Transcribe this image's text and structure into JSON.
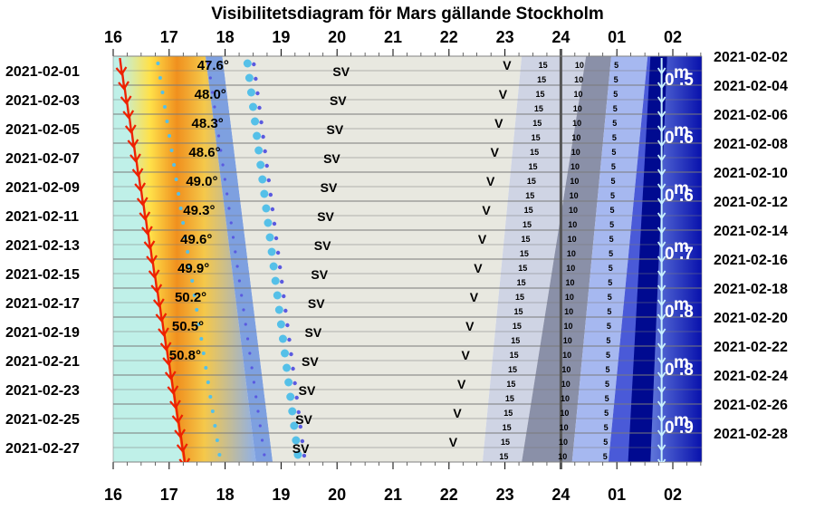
{
  "chart_data": {
    "type": "visibility-diagram",
    "title": "Visibilitetsdiagram för Mars gällande Stockholm",
    "hour_labels": [
      "16",
      "17",
      "18",
      "19",
      "20",
      "21",
      "22",
      "23",
      "24",
      "01",
      "02"
    ],
    "x_axis": {
      "start_hour": 16,
      "end_hour": 26.6,
      "unit": "h (local time)"
    },
    "left_dates": [
      "2021-02-01",
      "2021-02-03",
      "2021-02-05",
      "2021-02-07",
      "2021-02-09",
      "2021-02-11",
      "2021-02-13",
      "2021-02-15",
      "2021-02-17",
      "2021-02-19",
      "2021-02-21",
      "2021-02-23",
      "2021-02-25",
      "2021-02-27"
    ],
    "right_dates": [
      "2021-02-02",
      "2021-02-04",
      "2021-02-06",
      "2021-02-08",
      "2021-02-10",
      "2021-02-12",
      "2021-02-14",
      "2021-02-16",
      "2021-02-18",
      "2021-02-20",
      "2021-02-22",
      "2021-02-24",
      "2021-02-26",
      "2021-02-28"
    ],
    "max_altitude": [
      {
        "date": "2021-02-01",
        "value": "47.6°",
        "time": 17.5
      },
      {
        "date": "2021-02-03",
        "value": "48.0°",
        "time": 17.45
      },
      {
        "date": "2021-02-05",
        "value": "48.3°",
        "time": 17.4
      },
      {
        "date": "2021-02-07",
        "value": "48.6°",
        "time": 17.35
      },
      {
        "date": "2021-02-09",
        "value": "49.0°",
        "time": 17.3
      },
      {
        "date": "2021-02-11",
        "value": "49.3°",
        "time": 17.25
      },
      {
        "date": "2021-02-13",
        "value": "49.6°",
        "time": 17.2
      },
      {
        "date": "2021-02-15",
        "value": "49.9°",
        "time": 17.15
      },
      {
        "date": "2021-02-17",
        "value": "50.2°",
        "time": 17.1
      },
      {
        "date": "2021-02-19",
        "value": "50.5°",
        "time": 17.05
      },
      {
        "date": "2021-02-21",
        "value": "50.8°",
        "time": 17.0
      }
    ],
    "sunset_hours": [
      16.12,
      17.25
    ],
    "nautical_twilight_end_hours": [
      17.95,
      18.85
    ],
    "sv_marker_hours": [
      19.95,
      19.2
    ],
    "v_marker_hours": [
      23.0,
      22.0
    ],
    "moon_left_hours": [
      24.45,
      23.3
    ],
    "moonrise_hours": [
      25.55,
      24.85
    ],
    "mars_set_hours": [
      25.8,
      25.8
    ],
    "altitude_tick_labels": [
      "15",
      "10",
      "5"
    ],
    "altitude_tick_hours": [
      {
        "label": "15",
        "start": 23.6,
        "end": 22.9
      },
      {
        "label": "10",
        "start": 24.25,
        "end": 23.95
      },
      {
        "label": "5",
        "start": 24.95,
        "end": 24.75
      }
    ],
    "magnitude_labels": [
      "0.5",
      "0.6",
      "0.6",
      "0.7",
      "0.8",
      "0.8",
      "0.9"
    ],
    "magnitude_prefix": "0",
    "magnitude_unit": "m",
    "colors": {
      "sunset_arrow": "#ee2200",
      "twilight_cyan": "#bff0e8",
      "twilight_yellow": "#ffd23a",
      "twilight_orange": "#f08c1e",
      "evening_blue": "#7ea0e0",
      "night_gray": "#e8e8e0",
      "dark_gray": "#8a90a8",
      "moon_light": "#a6b8f0",
      "moon_mid": "#4a5ad8",
      "dark_night": "#000a90",
      "mars_set_arrow": "#c8f0ff",
      "dot_cyan": "#55c0e8",
      "dot_blue": "#5a5ae0",
      "midnight_line": "#555555",
      "grid": "#000000"
    }
  }
}
